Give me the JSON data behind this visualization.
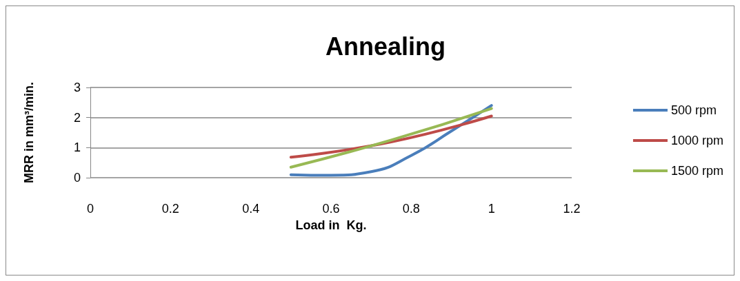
{
  "chart_data": {
    "type": "line",
    "title": "Annealing",
    "xlabel": "Load in  Kg.",
    "ylabel": "MRR in mm³/min.",
    "xlim": [
      0,
      1.2
    ],
    "xticks": [
      0,
      0.2,
      0.4,
      0.6,
      0.8,
      1,
      1.2
    ],
    "ylim": [
      0,
      3
    ],
    "yticks": [
      0,
      1,
      2,
      3
    ],
    "grid": "y",
    "legend": "right",
    "marker": "none",
    "line_style": "solid",
    "series": [
      {
        "name": "500 rpm",
        "color": "#4a7ebb",
        "x": [
          0.5,
          0.6,
          0.7,
          0.8,
          0.9,
          1
        ],
        "values": [
          0.1,
          0.08,
          0.2,
          0.74,
          1.55,
          2.4
        ]
      },
      {
        "name": "1000 rpm",
        "color": "#be4b48",
        "x": [
          0.5,
          0.75,
          1
        ],
        "values": [
          0.68,
          1.19,
          2.05
        ]
      },
      {
        "name": "1500 rpm",
        "color": "#98b954",
        "x": [
          0.5,
          0.75,
          1
        ],
        "values": [
          0.35,
          1.25,
          2.3
        ]
      }
    ]
  }
}
